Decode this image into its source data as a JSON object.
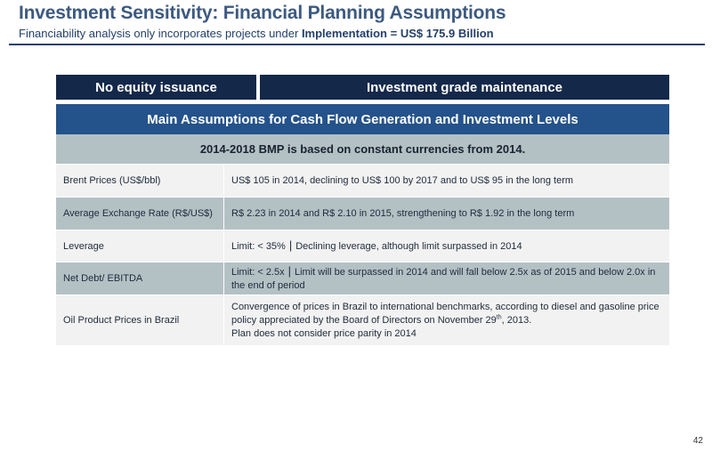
{
  "header": {
    "title": "Investment Sensitivity: Financial Planning Assumptions",
    "subtitle_prefix": "Financiability analysis only incorporates projects under ",
    "subtitle_bold": "Implementation = US$ 175.9 Billion"
  },
  "tabs": {
    "left": "No equity issuance",
    "right": "Investment grade maintenance"
  },
  "table": {
    "title": "Main Assumptions for Cash Flow Generation and Investment Levels",
    "subheader": "2014-2018 BMP is based on constant currencies from 2014.",
    "rows": [
      {
        "label": "Brent Prices (US$/bbl)",
        "value": "US$ 105 in 2014, declining to US$ 100 by 2017 and to US$ 95 in the long term"
      },
      {
        "label": "Average Exchange Rate (R$/US$)",
        "value": "R$ 2.23 in 2014 and R$ 2.10 in 2015, strengthening to R$ 1.92 in the long term"
      },
      {
        "label": "Leverage",
        "value_a": "Limit:  < 35%",
        "separator": "|",
        "value_b": "Declining leverage, although limit surpassed in 2014"
      },
      {
        "label": "Net Debt/ EBITDA",
        "value_a": "Limit:  < 2.5x",
        "separator": "|",
        "value_b": "Limit will be surpassed in 2014 and will fall below 2.5x as of 2015 and below 2.0x in the end of period"
      },
      {
        "label": "Oil Product Prices in Brazil",
        "value_line1": "Convergence of prices in Brazil to international benchmarks, according to diesel and gasoline price policy appreciated by the Board of Directors on November 29",
        "value_sup": "th",
        "value_line1_end": ", 2013.",
        "value_line2": "Plan does not consider price parity in 2014"
      }
    ]
  },
  "page_number": "42"
}
